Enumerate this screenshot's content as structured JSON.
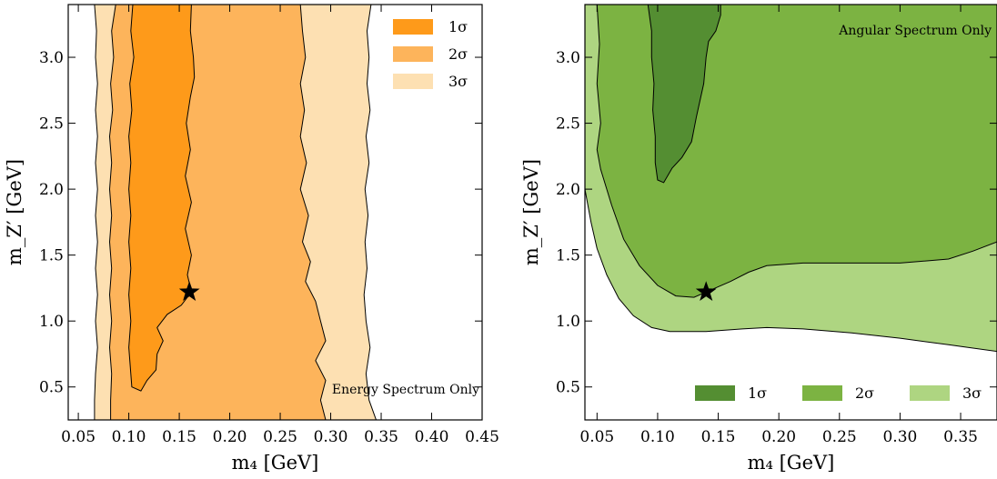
{
  "chart_data": [
    {
      "type": "contour",
      "annotation": "Energy Spectrum Only",
      "xlabel": "m₄ [GeV]",
      "ylabel": "m_Z′ [GeV]",
      "xlim": [
        0.04,
        0.45
      ],
      "ylim": [
        0.25,
        3.4
      ],
      "xticks": [
        "0.05",
        "0.10",
        "0.15",
        "0.20",
        "0.25",
        "0.30",
        "0.35",
        "0.40",
        "0.45"
      ],
      "yticks": [
        "0.5",
        "1.0",
        "1.5",
        "2.0",
        "2.5",
        "3.0"
      ],
      "legend": {
        "position": "top-right",
        "layout": "vertical"
      },
      "best_fit": {
        "marker": "star",
        "x": 0.16,
        "y": 1.22
      },
      "regions": [
        {
          "name": "3σ",
          "color": "#fde0b2",
          "polygon": [
            [
              0.066,
              3.4
            ],
            [
              0.068,
              3.2
            ],
            [
              0.067,
              3.0
            ],
            [
              0.069,
              2.8
            ],
            [
              0.067,
              2.6
            ],
            [
              0.069,
              2.4
            ],
            [
              0.067,
              2.2
            ],
            [
              0.069,
              2.0
            ],
            [
              0.067,
              1.8
            ],
            [
              0.069,
              1.6
            ],
            [
              0.067,
              1.4
            ],
            [
              0.069,
              1.2
            ],
            [
              0.067,
              1.0
            ],
            [
              0.069,
              0.8
            ],
            [
              0.067,
              0.6
            ],
            [
              0.066,
              0.4
            ],
            [
              0.066,
              0.25
            ],
            [
              0.345,
              0.25
            ],
            [
              0.338,
              0.4
            ],
            [
              0.335,
              0.6
            ],
            [
              0.339,
              0.8
            ],
            [
              0.335,
              1.0
            ],
            [
              0.333,
              1.2
            ],
            [
              0.336,
              1.4
            ],
            [
              0.334,
              1.6
            ],
            [
              0.337,
              1.8
            ],
            [
              0.334,
              2.0
            ],
            [
              0.338,
              2.2
            ],
            [
              0.335,
              2.4
            ],
            [
              0.339,
              2.6
            ],
            [
              0.336,
              2.8
            ],
            [
              0.338,
              3.0
            ],
            [
              0.336,
              3.2
            ],
            [
              0.34,
              3.4
            ]
          ]
        },
        {
          "name": "2σ",
          "color": "#fdb45b",
          "polygon": [
            [
              0.087,
              3.4
            ],
            [
              0.083,
              3.2
            ],
            [
              0.085,
              3.0
            ],
            [
              0.082,
              2.8
            ],
            [
              0.084,
              2.6
            ],
            [
              0.081,
              2.4
            ],
            [
              0.083,
              2.2
            ],
            [
              0.081,
              2.0
            ],
            [
              0.083,
              1.8
            ],
            [
              0.081,
              1.6
            ],
            [
              0.083,
              1.4
            ],
            [
              0.081,
              1.2
            ],
            [
              0.083,
              1.0
            ],
            [
              0.081,
              0.8
            ],
            [
              0.083,
              0.6
            ],
            [
              0.082,
              0.4
            ],
            [
              0.082,
              0.25
            ],
            [
              0.295,
              0.25
            ],
            [
              0.29,
              0.4
            ],
            [
              0.295,
              0.55
            ],
            [
              0.285,
              0.7
            ],
            [
              0.295,
              0.85
            ],
            [
              0.29,
              1.0
            ],
            [
              0.285,
              1.15
            ],
            [
              0.275,
              1.3
            ],
            [
              0.28,
              1.45
            ],
            [
              0.272,
              1.6
            ],
            [
              0.278,
              1.8
            ],
            [
              0.27,
              2.0
            ],
            [
              0.276,
              2.2
            ],
            [
              0.27,
              2.4
            ],
            [
              0.274,
              2.6
            ],
            [
              0.27,
              2.8
            ],
            [
              0.275,
              3.0
            ],
            [
              0.272,
              3.2
            ],
            [
              0.27,
              3.4
            ]
          ]
        },
        {
          "name": "1σ",
          "color": "#fe9a1a",
          "polygon": [
            [
              0.104,
              3.4
            ],
            [
              0.102,
              3.2
            ],
            [
              0.105,
              3.0
            ],
            [
              0.101,
              2.8
            ],
            [
              0.103,
              2.6
            ],
            [
              0.1,
              2.4
            ],
            [
              0.102,
              2.2
            ],
            [
              0.1,
              2.0
            ],
            [
              0.102,
              1.8
            ],
            [
              0.1,
              1.6
            ],
            [
              0.102,
              1.4
            ],
            [
              0.1,
              1.2
            ],
            [
              0.102,
              1.0
            ],
            [
              0.1,
              0.8
            ],
            [
              0.102,
              0.6
            ],
            [
              0.103,
              0.5
            ],
            [
              0.112,
              0.47
            ],
            [
              0.118,
              0.55
            ],
            [
              0.127,
              0.63
            ],
            [
              0.128,
              0.75
            ],
            [
              0.134,
              0.85
            ],
            [
              0.128,
              0.95
            ],
            [
              0.138,
              1.05
            ],
            [
              0.152,
              1.12
            ],
            [
              0.162,
              1.22
            ],
            [
              0.158,
              1.35
            ],
            [
              0.162,
              1.5
            ],
            [
              0.156,
              1.7
            ],
            [
              0.162,
              1.9
            ],
            [
              0.156,
              2.1
            ],
            [
              0.161,
              2.3
            ],
            [
              0.157,
              2.5
            ],
            [
              0.161,
              2.7
            ],
            [
              0.165,
              2.85
            ],
            [
              0.164,
              3.0
            ],
            [
              0.161,
              3.2
            ],
            [
              0.162,
              3.4
            ]
          ]
        }
      ]
    },
    {
      "type": "contour",
      "annotation": "Angular Spectrum Only",
      "xlabel": "m₄ [GeV]",
      "ylabel": "m_Z′ [GeV]",
      "xlim": [
        0.04,
        0.38
      ],
      "ylim": [
        0.25,
        3.4
      ],
      "xticks": [
        "0.05",
        "0.10",
        "0.15",
        "0.20",
        "0.25",
        "0.30",
        "0.35"
      ],
      "yticks": [
        "0.5",
        "1.0",
        "1.5",
        "2.0",
        "2.5",
        "3.0"
      ],
      "legend": {
        "position": "bottom",
        "layout": "horizontal"
      },
      "best_fit": {
        "marker": "star",
        "x": 0.14,
        "y": 1.22
      },
      "regions": [
        {
          "name": "3σ",
          "color": "#aed581",
          "polygon": [
            [
              0.04,
              3.4
            ],
            [
              0.04,
              2.0
            ],
            [
              0.045,
              1.75
            ],
            [
              0.05,
              1.55
            ],
            [
              0.058,
              1.35
            ],
            [
              0.068,
              1.17
            ],
            [
              0.08,
              1.04
            ],
            [
              0.095,
              0.95
            ],
            [
              0.11,
              0.92
            ],
            [
              0.14,
              0.92
            ],
            [
              0.17,
              0.94
            ],
            [
              0.19,
              0.95
            ],
            [
              0.22,
              0.94
            ],
            [
              0.26,
              0.91
            ],
            [
              0.3,
              0.87
            ],
            [
              0.34,
              0.82
            ],
            [
              0.38,
              0.77
            ],
            [
              0.38,
              3.4
            ]
          ]
        },
        {
          "name": "2σ",
          "color": "#7cb342",
          "polygon": [
            [
              0.05,
              3.4
            ],
            [
              0.052,
              3.1
            ],
            [
              0.05,
              2.8
            ],
            [
              0.053,
              2.5
            ],
            [
              0.05,
              2.3
            ],
            [
              0.053,
              2.15
            ],
            [
              0.062,
              1.88
            ],
            [
              0.072,
              1.62
            ],
            [
              0.085,
              1.42
            ],
            [
              0.1,
              1.27
            ],
            [
              0.115,
              1.19
            ],
            [
              0.13,
              1.18
            ],
            [
              0.14,
              1.22
            ],
            [
              0.16,
              1.3
            ],
            [
              0.175,
              1.37
            ],
            [
              0.19,
              1.42
            ],
            [
              0.22,
              1.44
            ],
            [
              0.26,
              1.44
            ],
            [
              0.3,
              1.44
            ],
            [
              0.34,
              1.47
            ],
            [
              0.36,
              1.53
            ],
            [
              0.38,
              1.6
            ],
            [
              0.38,
              3.4
            ]
          ]
        },
        {
          "name": "1σ",
          "color": "#548e32",
          "polygon": [
            [
              0.092,
              3.4
            ],
            [
              0.095,
              3.2
            ],
            [
              0.095,
              3.0
            ],
            [
              0.097,
              2.8
            ],
            [
              0.096,
              2.6
            ],
            [
              0.098,
              2.4
            ],
            [
              0.098,
              2.2
            ],
            [
              0.1,
              2.07
            ],
            [
              0.105,
              2.05
            ],
            [
              0.112,
              2.16
            ],
            [
              0.12,
              2.24
            ],
            [
              0.128,
              2.36
            ],
            [
              0.132,
              2.55
            ],
            [
              0.138,
              2.8
            ],
            [
              0.14,
              3.0
            ],
            [
              0.142,
              3.12
            ],
            [
              0.148,
              3.2
            ],
            [
              0.152,
              3.32
            ],
            [
              0.152,
              3.4
            ]
          ]
        }
      ]
    }
  ]
}
